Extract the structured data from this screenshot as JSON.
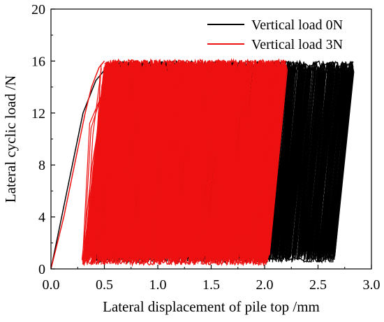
{
  "chart_data": {
    "type": "line",
    "title": "",
    "xlabel": "Lateral displacement of pile top /mm",
    "ylabel": "Lateral cyclic load /N",
    "xlim": [
      0.0,
      3.0
    ],
    "ylim": [
      0,
      20
    ],
    "xticks": [
      "0.0",
      "0.5",
      "1.0",
      "1.5",
      "2.0",
      "2.5",
      "3.0"
    ],
    "yticks": [
      "0",
      "4",
      "8",
      "12",
      "16",
      "20"
    ],
    "legend_position": "top-right",
    "grid": false,
    "series": [
      {
        "name": "Vertical load 0N",
        "color": "#000000",
        "loading_path": [
          [
            0.0,
            0.0
          ],
          [
            0.1,
            4.0
          ],
          [
            0.2,
            8.0
          ],
          [
            0.3,
            12.0
          ],
          [
            0.42,
            14.5
          ],
          [
            0.55,
            15.8
          ]
        ],
        "cycle_envelope": {
          "unload_start_x": [
            0.52,
            2.83
          ],
          "unload_end_x": [
            0.38,
            2.65
          ],
          "load_min": 0.5,
          "load_max": 16.0
        }
      },
      {
        "name": "Vertical load 3N",
        "color": "#ee1111",
        "loading_path": [
          [
            0.0,
            0.0
          ],
          [
            0.12,
            4.0
          ],
          [
            0.22,
            8.0
          ],
          [
            0.32,
            12.0
          ],
          [
            0.38,
            14.0
          ],
          [
            0.45,
            15.5
          ],
          [
            0.5,
            16.0
          ]
        ],
        "cycle_envelope": {
          "unload_start_x": [
            0.5,
            2.2
          ],
          "unload_end_x": [
            0.3,
            2.03
          ],
          "load_min": 0.3,
          "load_max": 16.1
        }
      }
    ]
  }
}
